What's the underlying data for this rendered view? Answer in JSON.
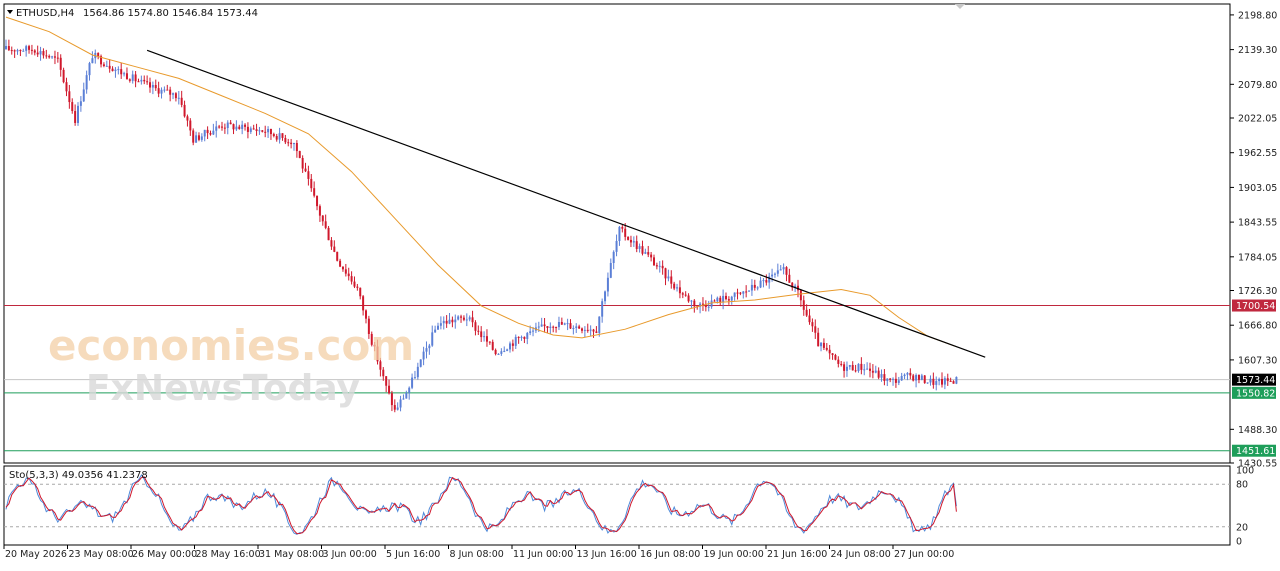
{
  "header": {
    "symbol": "ETHUSD,H4",
    "ohlc": "1564.86 1574.80 1546.84 1573.44"
  },
  "watermark": {
    "line1": "economies.com",
    "line2": "FxNewsToday"
  },
  "chart_data": {
    "type": "candlestick",
    "price_axis": {
      "ylim": [
        1430.55,
        2217.5
      ],
      "ticks": [
        "2198.80",
        "2139.30",
        "2079.80",
        "2022.05",
        "1962.55",
        "1903.05",
        "1843.55",
        "1784.05",
        "1726.30",
        "1666.80",
        "1607.30",
        "1488.30",
        "1430.55"
      ]
    },
    "time_axis": {
      "labels": [
        "20 May 2026",
        "23 May 08:00",
        "26 May 00:00",
        "28 May 16:00",
        "31 May 08:00",
        "3 Jun 00:00",
        "5 Jun 16:00",
        "8 Jun 08:00",
        "11 Jun 00:00",
        "13 Jun 16:00",
        "16 Jun 08:00",
        "19 Jun 00:00",
        "21 Jun 16:00",
        "24 Jun 08:00",
        "27 Jun 00:00"
      ]
    },
    "levels": [
      {
        "value": 1700.54,
        "label": "1700.54",
        "color": "#c0283e"
      },
      {
        "value": 1573.44,
        "label": "1573.44",
        "color": "#000000"
      },
      {
        "value": 1550.82,
        "label": "1550.82",
        "color": "#1e9e5a"
      },
      {
        "value": 1451.61,
        "label": "1451.61",
        "color": "#1e9e5a"
      }
    ],
    "trendline": {
      "from": {
        "bar": 49,
        "price": 2138
      },
      "to": {
        "bar": 340,
        "price": 1612
      },
      "color": "#000000"
    },
    "moving_average": {
      "color": "#e89a2c",
      "points": [
        [
          0,
          2195
        ],
        [
          15,
          2170
        ],
        [
          30,
          2130
        ],
        [
          45,
          2110
        ],
        [
          60,
          2090
        ],
        [
          75,
          2060
        ],
        [
          90,
          2030
        ],
        [
          105,
          1995
        ],
        [
          120,
          1930
        ],
        [
          135,
          1850
        ],
        [
          150,
          1770
        ],
        [
          165,
          1700
        ],
        [
          178,
          1670
        ],
        [
          190,
          1650
        ],
        [
          200,
          1645
        ],
        [
          215,
          1660
        ],
        [
          230,
          1685
        ],
        [
          245,
          1705
        ],
        [
          260,
          1710
        ],
        [
          275,
          1720
        ],
        [
          290,
          1728
        ],
        [
          300,
          1718
        ],
        [
          310,
          1680
        ],
        [
          320,
          1648
        ],
        [
          330,
          1630
        ]
      ]
    },
    "candle_anchors": [
      [
        0,
        2140
      ],
      [
        10,
        2140
      ],
      [
        18,
        2120
      ],
      [
        24,
        2020
      ],
      [
        30,
        2130
      ],
      [
        40,
        2100
      ],
      [
        50,
        2075
      ],
      [
        60,
        2060
      ],
      [
        65,
        1985
      ],
      [
        75,
        2010
      ],
      [
        90,
        2000
      ],
      [
        100,
        1980
      ],
      [
        108,
        1870
      ],
      [
        115,
        1780
      ],
      [
        122,
        1730
      ],
      [
        127,
        1640
      ],
      [
        132,
        1560
      ],
      [
        135,
        1520
      ],
      [
        140,
        1560
      ],
      [
        150,
        1670
      ],
      [
        160,
        1680
      ],
      [
        170,
        1620
      ],
      [
        180,
        1650
      ],
      [
        190,
        1670
      ],
      [
        205,
        1660
      ],
      [
        208,
        1730
      ],
      [
        213,
        1830
      ],
      [
        222,
        1790
      ],
      [
        235,
        1720
      ],
      [
        240,
        1700
      ],
      [
        255,
        1720
      ],
      [
        270,
        1760
      ],
      [
        275,
        1720
      ],
      [
        282,
        1635
      ],
      [
        290,
        1595
      ],
      [
        298,
        1595
      ],
      [
        307,
        1570
      ],
      [
        314,
        1580
      ],
      [
        323,
        1568
      ],
      [
        330,
        1573.44
      ]
    ],
    "stochastic": {
      "label": "Sto(5,3,3) 49.0356 41.2378",
      "k": 49.0356,
      "d": 41.2378,
      "levels": [
        80,
        20
      ],
      "ticks": [
        "100",
        "80",
        "20",
        "0"
      ]
    }
  }
}
